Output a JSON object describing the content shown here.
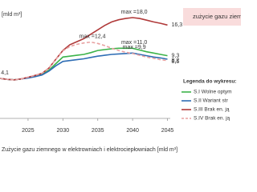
{
  "chart_data": {
    "type": "line",
    "y_label": "[mld m³]",
    "caption": "Zużycie gazu ziemnego w elektrowniach i elektrociepłowniach [mld m³]",
    "box_title": "zużycie gazu ziem",
    "legend_title": "Legenda do wykresu:",
    "x": [
      2021,
      2022,
      2023,
      2024,
      2025,
      2026,
      2027,
      2028,
      2029,
      2030,
      2031,
      2032,
      2033,
      2034,
      2035,
      2036,
      2037,
      2038,
      2039,
      2040,
      2041,
      2042,
      2043,
      2044,
      2045
    ],
    "xlim": [
      2021,
      2045.4
    ],
    "xticks": [
      2025,
      2030,
      2035,
      2040,
      2045
    ],
    "ylim": [
      -5,
      20
    ],
    "series": [
      {
        "name": "S.I Wolne optym",
        "color": "#3cb34a",
        "dash": false,
        "values": [
          4.1,
          3.9,
          3.8,
          4.0,
          4.3,
          4.6,
          5.0,
          6.0,
          7.5,
          9.0,
          9.2,
          9.4,
          9.6,
          10.0,
          10.5,
          10.7,
          10.9,
          11.0,
          11.0,
          11.0,
          10.6,
          10.2,
          9.9,
          9.6,
          9.3
        ],
        "value_labels": [
          null,
          null,
          null,
          null,
          null,
          null,
          null,
          null,
          null,
          null,
          null,
          null,
          null,
          null,
          null,
          null,
          null,
          null,
          null,
          "max =11,0",
          null,
          null,
          null,
          null,
          "9,3"
        ]
      },
      {
        "name": "S.II Wariant str",
        "color": "#2e6db4",
        "dash": false,
        "values": [
          4.1,
          3.9,
          3.8,
          4.0,
          4.2,
          4.5,
          4.9,
          5.8,
          7.0,
          8.0,
          8.2,
          8.4,
          8.6,
          8.9,
          9.2,
          9.4,
          9.6,
          9.7,
          9.8,
          9.9,
          9.6,
          9.3,
          9.0,
          8.8,
          8.5
        ],
        "value_labels": [
          null,
          null,
          null,
          null,
          null,
          null,
          null,
          null,
          null,
          null,
          null,
          null,
          null,
          null,
          null,
          null,
          null,
          null,
          null,
          "max =9,9",
          null,
          null,
          null,
          null,
          "8,5"
        ]
      },
      {
        "name": "S.III Brak en. ją",
        "color": "#b03a3a",
        "dash": false,
        "values": [
          4.1,
          3.9,
          3.8,
          4.0,
          4.4,
          4.8,
          5.3,
          6.5,
          8.5,
          10.5,
          11.8,
          12.5,
          13.2,
          14.2,
          15.2,
          16.2,
          17.0,
          17.5,
          17.8,
          18.0,
          17.8,
          17.4,
          17.0,
          16.7,
          16.3
        ],
        "value_labels": [
          "4,1",
          null,
          null,
          null,
          null,
          null,
          null,
          null,
          null,
          null,
          null,
          null,
          null,
          null,
          null,
          null,
          null,
          null,
          null,
          "max =18,0",
          null,
          null,
          null,
          null,
          "16,3"
        ]
      },
      {
        "name": "S.IV Brak en. ją",
        "color": "#e8a0a0",
        "dash": true,
        "values": [
          4.1,
          3.9,
          3.8,
          4.0,
          4.4,
          4.8,
          5.3,
          6.5,
          8.5,
          10.4,
          11.4,
          11.9,
          12.2,
          12.4,
          12.1,
          11.6,
          11.0,
          10.5,
          10.1,
          9.8,
          9.4,
          9.0,
          8.7,
          8.4,
          8.2
        ],
        "value_labels": [
          null,
          null,
          null,
          null,
          null,
          null,
          null,
          null,
          null,
          null,
          null,
          null,
          null,
          "max =12,4",
          null,
          null,
          null,
          null,
          null,
          null,
          null,
          null,
          null,
          null,
          "8,2"
        ]
      }
    ]
  }
}
